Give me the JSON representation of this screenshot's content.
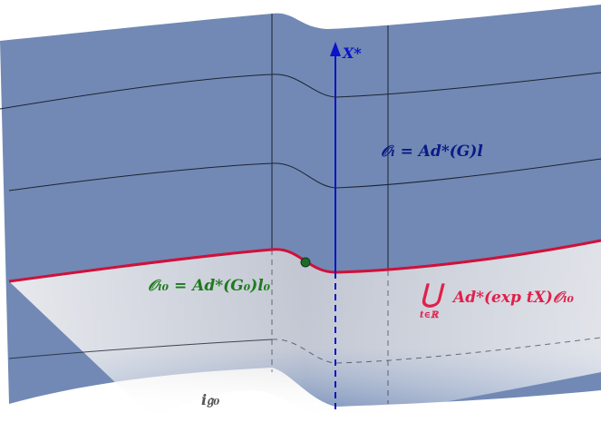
{
  "axis_label": "X*",
  "orbit_label": "𝒪ₗ = Ad*(G)l",
  "base_orbit_label": "𝒪ₗ₀ = Ad*(G₀)l₀",
  "union_label": {
    "symbol": "⋃",
    "index": "t∈ℝ",
    "expression": "Ad*(exp tX)𝒪ₗ₀"
  },
  "plane_label": "i𝔤₀"
}
